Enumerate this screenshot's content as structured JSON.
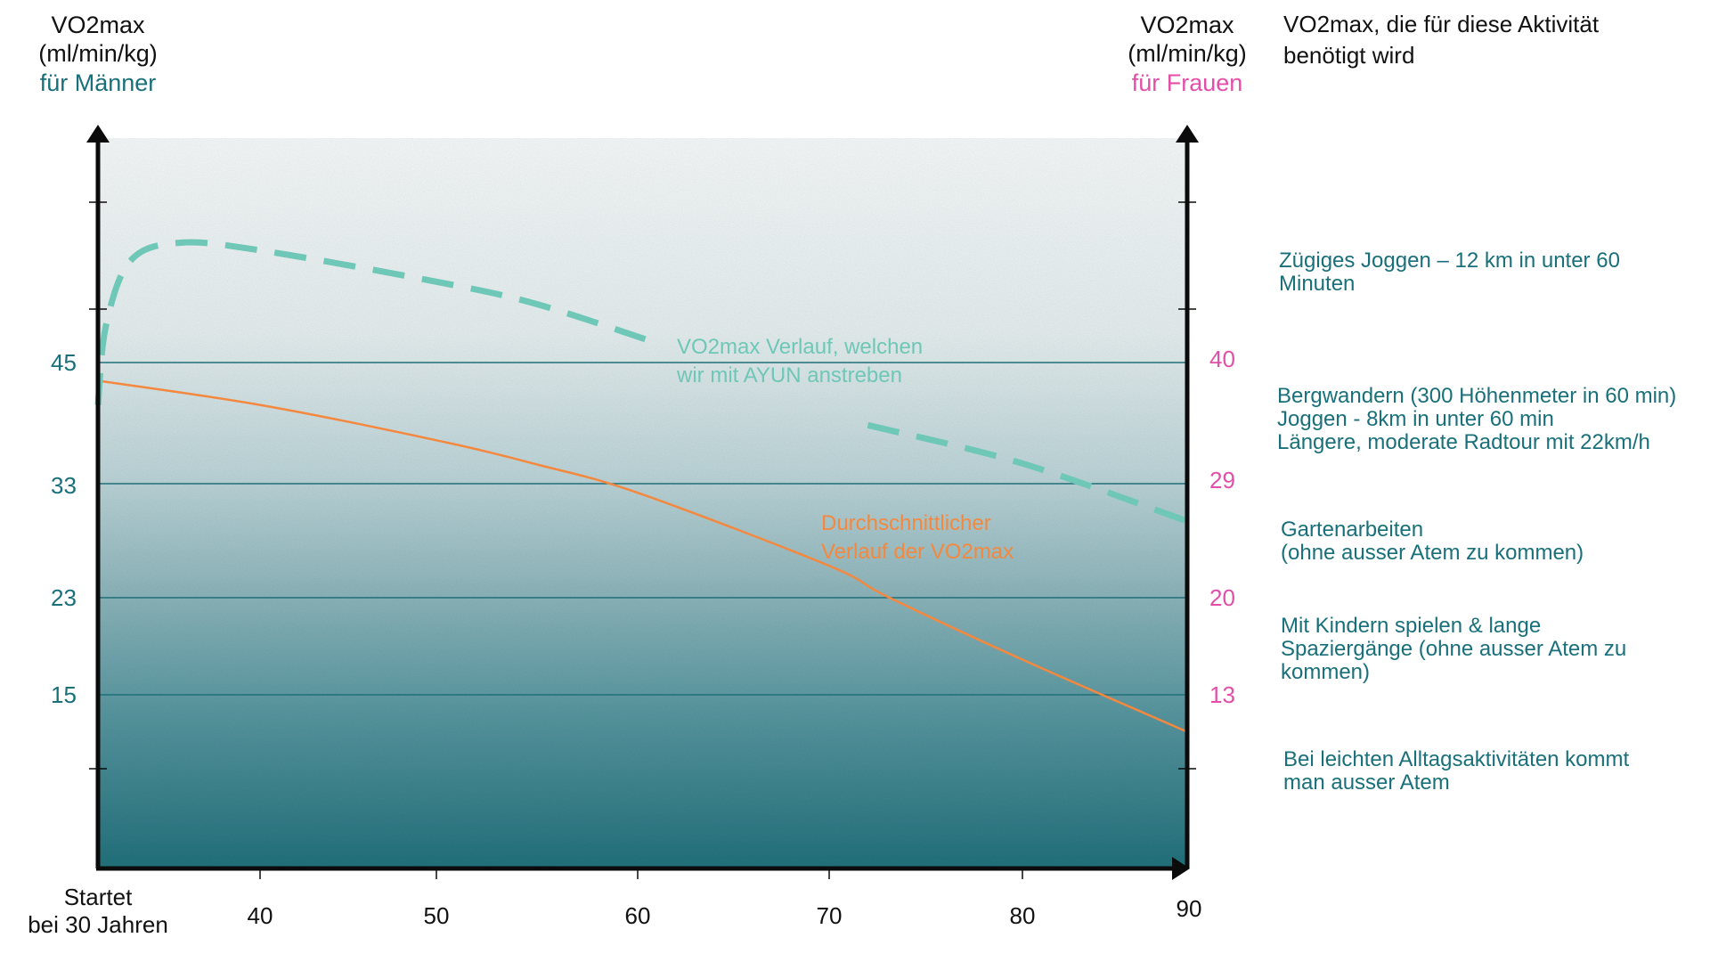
{
  "chart_data": {
    "type": "line",
    "left_axis": {
      "title_line1": "VO2max",
      "title_line2": "(ml/min/kg)",
      "title_line3": "für Männer",
      "ticks": [
        45,
        33,
        23,
        15
      ]
    },
    "right_axis": {
      "title_line1": "VO2max",
      "title_line2": "(ml/min/kg)",
      "title_line3": "für Frauen",
      "ticks": [
        40,
        29,
        20,
        13
      ]
    },
    "x_axis": {
      "start_line1": "Startet",
      "start_line2": "bei 30 Jahren",
      "ticks": [
        40,
        50,
        60,
        70,
        80,
        90
      ],
      "range": [
        30,
        90
      ]
    },
    "y_range": [
      0,
      60
    ],
    "series": [
      {
        "name": "Durchschnittlicher Verlauf der VO2max",
        "style": "solid",
        "color": "#f4883e",
        "x": [
          30,
          40,
          50,
          55,
          60,
          70,
          73,
          80,
          90
        ],
        "y": [
          43.2,
          40.8,
          37.3,
          34.9,
          32.2,
          25.8,
          23.1,
          17.9,
          11.8
        ]
      },
      {
        "name": "VO2max Verlauf, welchen wir mit AYUN anstreben",
        "style": "dashed",
        "color": "#6ec7b7",
        "x": [
          30,
          30.5,
          32,
          35,
          40,
          50,
          55,
          61,
          72,
          80,
          90
        ],
        "y": [
          40.8,
          47.5,
          51.8,
          53.0,
          52.5,
          50.4,
          48.9,
          46.3,
          38.8,
          35.0,
          29.7
        ]
      }
    ],
    "annotations": {
      "ayun_line1": "VO2max Verlauf, welchen",
      "ayun_line2": "wir mit AYUN anstreben",
      "avg_line1": "Durchschnittlicher",
      "avg_line2": "Verlauf der VO2max"
    },
    "bands": [
      {
        "from": 0,
        "to": 15,
        "color": "#2f7c86"
      },
      {
        "from": 15,
        "to": 23,
        "color": "#6aa2aa"
      },
      {
        "from": 23,
        "to": 33,
        "color": "#a7c8cd"
      },
      {
        "from": 33,
        "to": 45,
        "color": "#dce9eb"
      },
      {
        "from": 45,
        "to": 60,
        "color": "#f3f8f9"
      }
    ],
    "legend": "right"
  },
  "activities": {
    "heading_line1": "VO2max, die für diese Aktivität",
    "heading_line2": "benötigt wird",
    "items": [
      {
        "text": "Zügiges Joggen – 12 km in unter 60 Minuten"
      },
      {
        "text": "Bergwandern (300 Höhenmeter in 60 min)\nJoggen - 8km in unter 60 min\nLängere, moderate Radtour mit 22km/h"
      },
      {
        "text": "Gartenarbeiten\n(ohne ausser Atem zu kommen)"
      },
      {
        "text": "Mit Kindern spielen & lange Spaziergänge (ohne ausser Atem zu kommen)"
      },
      {
        "text": "Bei leichten Alltagsaktivitäten kommt man ausser Atem"
      }
    ]
  },
  "colors": {
    "men": "#19707a",
    "women": "#e34fa8",
    "average": "#f4883e",
    "target": "#6ec7b7",
    "axis": "#0b0b0b"
  }
}
